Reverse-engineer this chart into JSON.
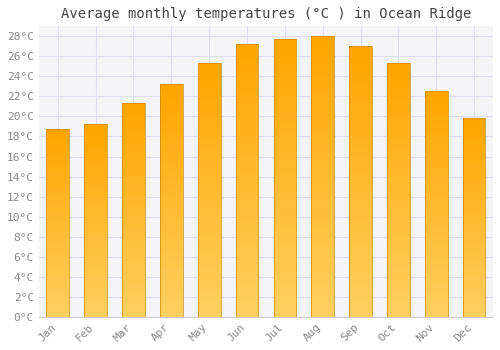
{
  "months": [
    "Jan",
    "Feb",
    "Mar",
    "Apr",
    "May",
    "Jun",
    "Jul",
    "Aug",
    "Sep",
    "Oct",
    "Nov",
    "Dec"
  ],
  "values": [
    18.7,
    19.2,
    21.3,
    23.2,
    25.3,
    27.2,
    27.7,
    28.0,
    27.0,
    25.3,
    22.5,
    19.8
  ],
  "title": "Average monthly temperatures (°C ) in Ocean Ridge",
  "bar_color_top": "#FFA500",
  "bar_color_bottom": "#FFD060",
  "bar_edge_color": "#CC8800",
  "ylim": [
    0,
    29
  ],
  "yticks": [
    0,
    2,
    4,
    6,
    8,
    10,
    12,
    14,
    16,
    18,
    20,
    22,
    24,
    26,
    28
  ],
  "bg_color": "#FFFFFF",
  "plot_bg_color": "#F5F5F8",
  "grid_color": "#DDDDEE",
  "title_fontsize": 10,
  "tick_fontsize": 8,
  "title_color": "#444444",
  "tick_color": "#888888",
  "axis_color": "#CCCCCC"
}
